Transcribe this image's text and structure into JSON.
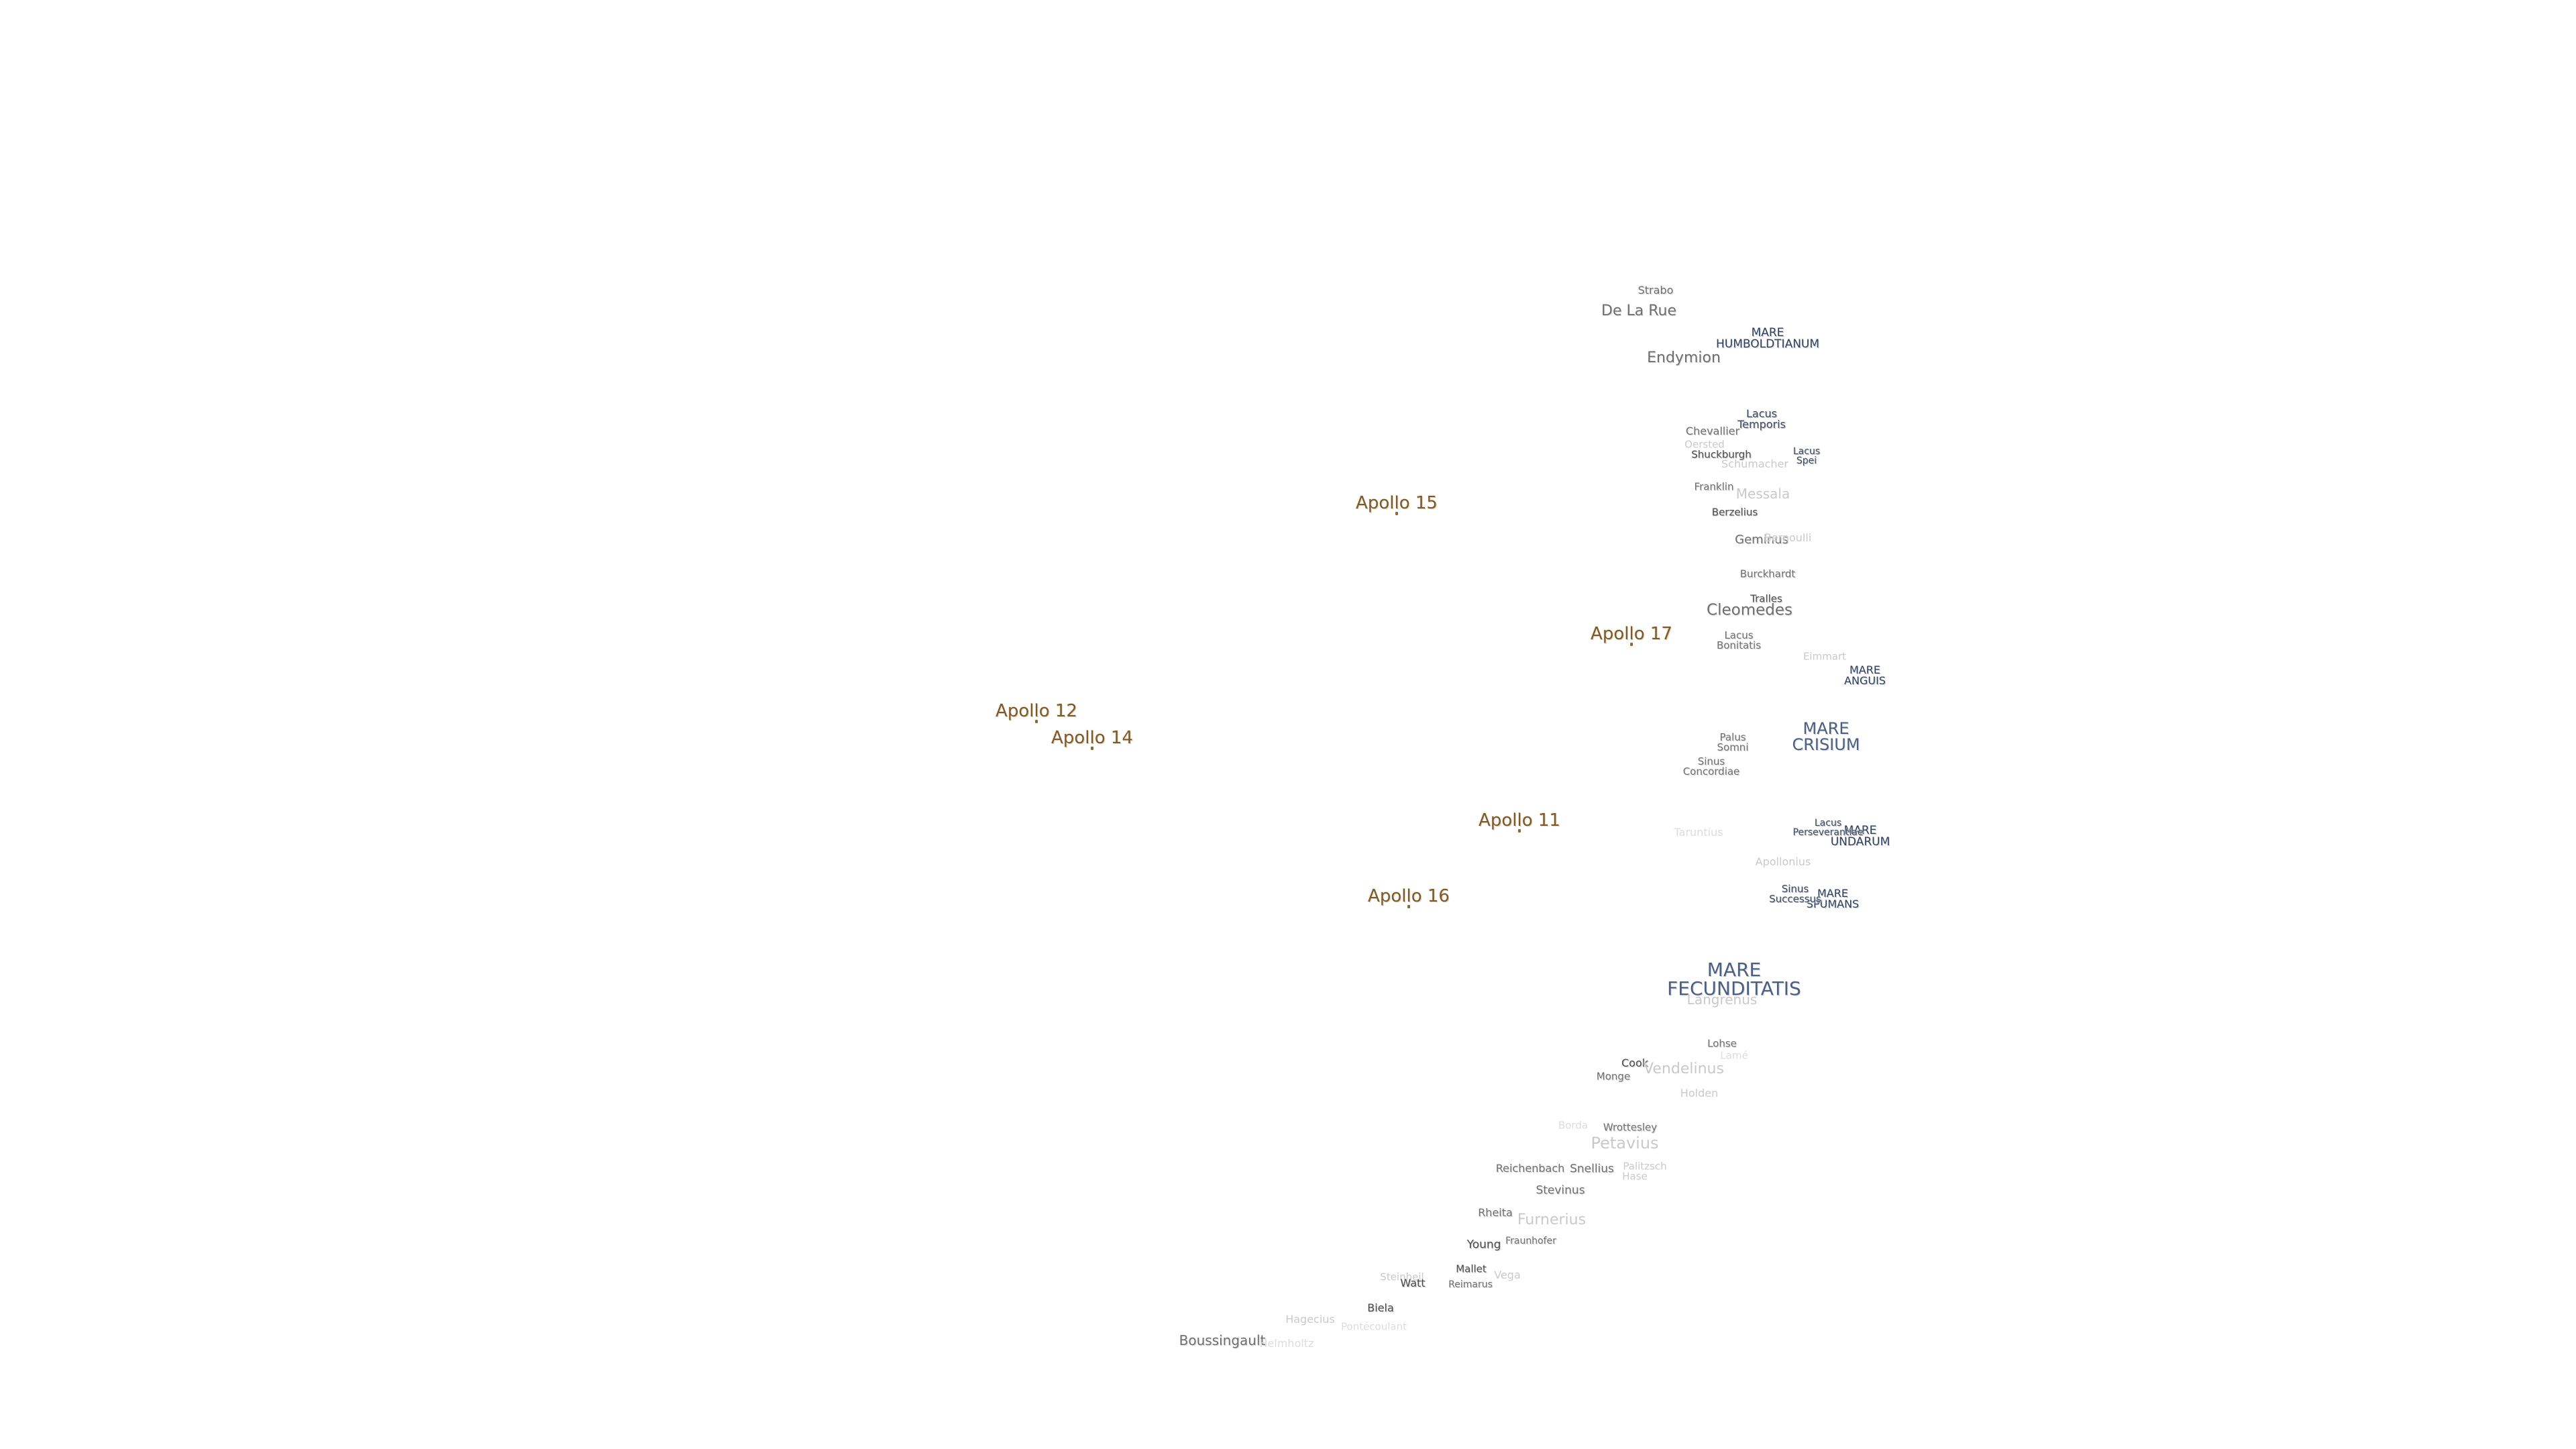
{
  "map": {
    "apollo_sites": [
      {
        "name": "Apollo 15"
      },
      {
        "name": "Apollo 17"
      },
      {
        "name": "Apollo 12"
      },
      {
        "name": "Apollo 14"
      },
      {
        "name": "Apollo 11"
      },
      {
        "name": "Apollo 16"
      }
    ],
    "maria": [
      {
        "name": "MARE HUMBOLDTIANUM"
      },
      {
        "name": "MARE ANGUIS"
      },
      {
        "name": "MARE CRISIUM"
      },
      {
        "name": "MARE UNDARUM"
      },
      {
        "name": "MARE SPUMANS"
      },
      {
        "name": "MARE FECUNDITATIS"
      }
    ],
    "lakes_bays_marshes": [
      {
        "name": "Lacus Temporis"
      },
      {
        "name": "Lacus Spei"
      },
      {
        "name": "Lacus Bonitatis"
      },
      {
        "name": "Palus Somni"
      },
      {
        "name": "Sinus Concordiae"
      },
      {
        "name": "Lacus Perseverantiae"
      },
      {
        "name": "Sinus Successus"
      }
    ],
    "craters": [
      {
        "name": "Strabo"
      },
      {
        "name": "De La Rue"
      },
      {
        "name": "Endymion"
      },
      {
        "name": "Chevallier"
      },
      {
        "name": "Oersted"
      },
      {
        "name": "Shuckburgh"
      },
      {
        "name": "Schumacher"
      },
      {
        "name": "Franklin"
      },
      {
        "name": "Messala"
      },
      {
        "name": "Berzelius"
      },
      {
        "name": "Geminus"
      },
      {
        "name": "Bernoulli"
      },
      {
        "name": "Burckhardt"
      },
      {
        "name": "Tralles"
      },
      {
        "name": "Cleomedes"
      },
      {
        "name": "Eimmart"
      },
      {
        "name": "Taruntius"
      },
      {
        "name": "Apollonius"
      },
      {
        "name": "Langrenus"
      },
      {
        "name": "Lohse"
      },
      {
        "name": "Lamé"
      },
      {
        "name": "Cook"
      },
      {
        "name": "Monge"
      },
      {
        "name": "Vendelinus"
      },
      {
        "name": "Holden"
      },
      {
        "name": "Borda"
      },
      {
        "name": "Wrottesley"
      },
      {
        "name": "Petavius"
      },
      {
        "name": "Reichenbach"
      },
      {
        "name": "Snellius"
      },
      {
        "name": "Palitzsch"
      },
      {
        "name": "Hase"
      },
      {
        "name": "Stevinus"
      },
      {
        "name": "Rheita"
      },
      {
        "name": "Furnerius"
      },
      {
        "name": "Young"
      },
      {
        "name": "Fraunhofer"
      },
      {
        "name": "Mallet"
      },
      {
        "name": "Vega"
      },
      {
        "name": "Reimarus"
      },
      {
        "name": "Steinheil"
      },
      {
        "name": "Watt"
      },
      {
        "name": "Biela"
      },
      {
        "name": "Hagecius"
      },
      {
        "name": "Boussingault"
      },
      {
        "name": "Pontécoulant"
      },
      {
        "name": "Helmholtz"
      }
    ]
  }
}
